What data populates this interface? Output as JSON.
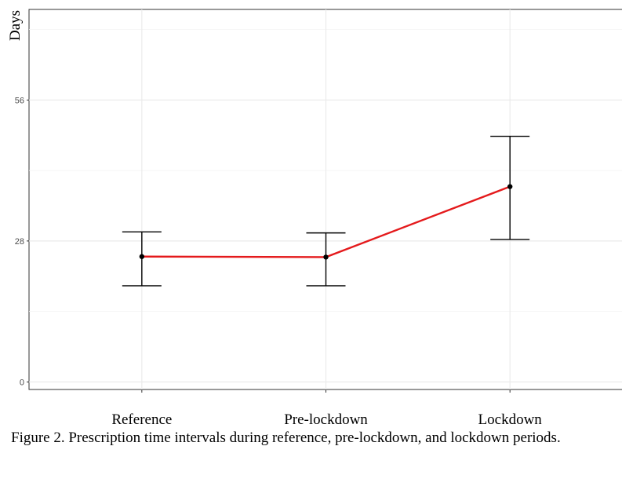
{
  "chart_data": {
    "type": "line",
    "ylabel": "Days",
    "xlabel": "",
    "categories": [
      "Reference",
      "Pre-lockdown",
      "Lockdown"
    ],
    "series": [
      {
        "values": [
          24.9,
          24.8,
          38.8
        ],
        "ci_low": [
          19.1,
          19.1,
          28.3
        ],
        "ci_high": [
          29.8,
          29.6,
          48.8
        ]
      }
    ],
    "ylim": [
      -1.5,
      74
    ],
    "y_ticks": [
      0,
      28,
      56
    ],
    "y_tick_labels": [
      "0",
      "28",
      "56"
    ],
    "grid": true,
    "line_color": "#e41a1c",
    "point_color": "#000000",
    "errorbar_color": "#000000"
  },
  "caption": "Figure 2. Prescription time intervals during reference, pre-lockdown, and lockdown periods."
}
